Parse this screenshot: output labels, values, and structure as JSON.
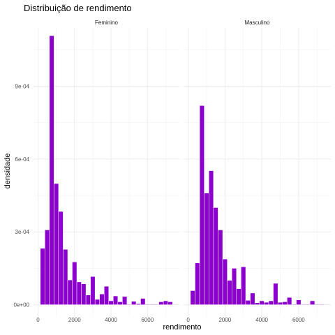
{
  "chart_data": {
    "type": "bar",
    "title": "Distribuição de rendimento",
    "xlabel": "rendimento",
    "ylabel": "densidade",
    "bar_color": "#8B00CC",
    "bar_edge_color": "#ffffff",
    "grid": true,
    "bin_width": 250,
    "xlim": [
      -250,
      7750
    ],
    "ylim": [
      -5e-05,
      0.00114
    ],
    "x_ticks": [
      0,
      2000,
      4000,
      6000
    ],
    "x_tick_labels": [
      "0",
      "2000",
      "4000",
      "6000"
    ],
    "y_ticks": [
      0,
      0.0003,
      0.0006,
      0.0009
    ],
    "y_tick_labels": [
      "0e+00",
      "3e-04",
      "6e-04",
      "9e-04"
    ],
    "panels": [
      {
        "name": "Feminino",
        "bin_centers": [
          250,
          500,
          750,
          1000,
          1250,
          1500,
          1750,
          2000,
          2250,
          2500,
          2750,
          3000,
          3250,
          3500,
          3750,
          4000,
          4250,
          4500,
          4750,
          5000,
          5250,
          5500,
          5750,
          6000,
          6250,
          6500,
          6750,
          7000,
          7250
        ],
        "values": [
          0.000232,
          0.000308,
          0.001108,
          0.000499,
          0.000384,
          0.000228,
          0.000102,
          0.000176,
          9.4e-05,
          8.6e-05,
          4e-05,
          0.000116,
          2.2e-05,
          4.4e-05,
          7.6e-05,
          1.6e-05,
          3.6e-05,
          1.2e-05,
          3.4e-05,
          2e-06,
          1.4e-05,
          4e-06,
          2.6e-05,
          2e-06,
          2e-06,
          2e-06,
          1.2e-05,
          1.6e-05,
          1.2e-05
        ]
      },
      {
        "name": "Masculino",
        "bin_centers": [
          250,
          500,
          750,
          1000,
          1250,
          1500,
          1750,
          2000,
          2250,
          2500,
          2750,
          3000,
          3250,
          3500,
          3750,
          4000,
          4250,
          4500,
          4750,
          5000,
          5250,
          5500,
          5750,
          6000,
          6250,
          6500,
          6750,
          7000,
          7250
        ],
        "values": [
          5.8e-05,
          0.000172,
          0.00082,
          0.00046,
          0.000552,
          0.0004,
          0.000308,
          0.000188,
          0.0001,
          0.00015,
          6.6e-05,
          0.000156,
          1.8e-05,
          4.8e-05,
          8e-06,
          1.6e-05,
          1e-05,
          1.6e-05,
          8.8e-05,
          1e-05,
          1.2e-05,
          3e-05,
          2e-06,
          2e-05,
          2e-06,
          2e-06,
          1.6e-05,
          2e-06,
          2e-06
        ]
      }
    ]
  }
}
